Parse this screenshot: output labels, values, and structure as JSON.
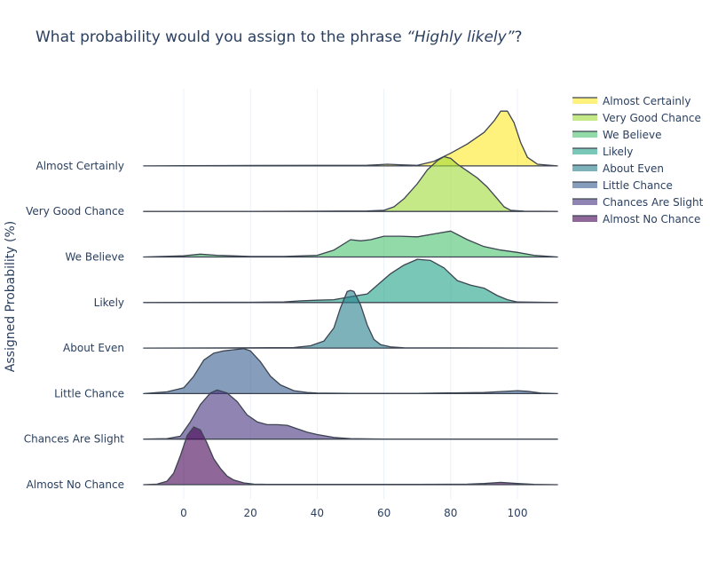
{
  "chart_data": {
    "type": "ridgeline",
    "title_prefix": "What probability would you assign to the phrase ",
    "title_phrase": "“Highly likely”",
    "title_suffix": "?",
    "ylabel": "Assigned Probability (%)",
    "xlabel": "",
    "xlim": [
      -12.5,
      112.5
    ],
    "xticks": [
      0,
      20,
      40,
      60,
      80,
      100
    ],
    "grid": true,
    "legend_position": "right",
    "line_color": "#3d4451",
    "categories": [
      "Almost No Chance",
      "Chances Are Slight",
      "Little Chance",
      "About Even",
      "Likely",
      "We Believe",
      "Very Good Chance",
      "Almost Certainly"
    ],
    "series": [
      {
        "name": "Almost Certainly",
        "color": "#fde725",
        "x": [
          -12,
          0,
          20,
          40,
          55,
          58,
          61,
          65,
          70,
          75,
          80,
          85,
          90,
          93,
          95,
          97,
          99,
          101,
          103,
          106,
          112
        ],
        "y": [
          0,
          0.005,
          0.008,
          0.01,
          0.012,
          0.02,
          0.03,
          0.02,
          0.01,
          0.08,
          0.22,
          0.38,
          0.58,
          0.78,
          0.95,
          0.95,
          0.75,
          0.4,
          0.15,
          0.03,
          0
        ]
      },
      {
        "name": "Very Good Chance",
        "color": "#a0da39",
        "x": [
          -12,
          20,
          40,
          55,
          60,
          63,
          66,
          70,
          73,
          76,
          78,
          80,
          82,
          85,
          88,
          91,
          94,
          96,
          98,
          102,
          112
        ],
        "y": [
          0,
          0.002,
          0.005,
          0.01,
          0.02,
          0.08,
          0.22,
          0.48,
          0.72,
          0.88,
          0.95,
          0.92,
          0.82,
          0.7,
          0.58,
          0.42,
          0.22,
          0.08,
          0.02,
          0.005,
          0
        ]
      },
      {
        "name": "We Believe",
        "color": "#4ac16d",
        "x": [
          -12,
          0,
          5,
          10,
          20,
          30,
          40,
          45,
          50,
          53,
          56,
          60,
          65,
          70,
          75,
          80,
          85,
          90,
          95,
          100,
          105,
          112
        ],
        "y": [
          0,
          0.02,
          0.05,
          0.03,
          0.01,
          0.01,
          0.03,
          0.12,
          0.3,
          0.28,
          0.3,
          0.36,
          0.36,
          0.35,
          0.4,
          0.45,
          0.3,
          0.18,
          0.12,
          0.08,
          0.03,
          0
        ]
      },
      {
        "name": "Likely",
        "color": "#1fa187",
        "x": [
          -12,
          20,
          30,
          35,
          40,
          45,
          50,
          55,
          58,
          62,
          66,
          70,
          74,
          78,
          82,
          86,
          90,
          94,
          97,
          100,
          112
        ],
        "y": [
          0,
          0.005,
          0.01,
          0.03,
          0.04,
          0.05,
          0.1,
          0.15,
          0.3,
          0.5,
          0.65,
          0.75,
          0.73,
          0.6,
          0.38,
          0.3,
          0.25,
          0.12,
          0.05,
          0.01,
          0
        ]
      },
      {
        "name": "About Even",
        "color": "#277f8e",
        "x": [
          -12,
          20,
          33,
          38,
          42,
          45,
          47,
          49,
          50,
          51,
          53,
          55,
          57,
          59,
          62,
          66,
          112
        ],
        "y": [
          0,
          0.005,
          0.01,
          0.04,
          0.12,
          0.35,
          0.7,
          0.98,
          1.0,
          0.98,
          0.75,
          0.4,
          0.15,
          0.06,
          0.02,
          0.005,
          0
        ]
      },
      {
        "name": "Little Chance",
        "color": "#365c8d",
        "x": [
          -12,
          -5,
          0,
          3,
          6,
          9,
          12,
          15,
          18,
          20,
          23,
          26,
          29,
          33,
          37,
          40,
          50,
          70,
          90,
          100,
          103,
          107,
          112
        ],
        "y": [
          0,
          0.03,
          0.1,
          0.3,
          0.58,
          0.7,
          0.74,
          0.76,
          0.78,
          0.74,
          0.55,
          0.3,
          0.15,
          0.05,
          0.02,
          0.01,
          0.005,
          0.005,
          0.02,
          0.05,
          0.04,
          0.01,
          0
        ]
      },
      {
        "name": "Chances Are Slight",
        "color": "#46337e",
        "x": [
          -12,
          -5,
          -1,
          2,
          5,
          8,
          10,
          13,
          16,
          19,
          22,
          25,
          28,
          31,
          34,
          37,
          40,
          45,
          50,
          60,
          112
        ],
        "y": [
          0,
          0.01,
          0.05,
          0.3,
          0.6,
          0.8,
          0.85,
          0.8,
          0.65,
          0.42,
          0.3,
          0.25,
          0.25,
          0.24,
          0.18,
          0.12,
          0.08,
          0.03,
          0.01,
          0.002,
          0
        ]
      },
      {
        "name": "Almost No Chance",
        "color": "#440154",
        "x": [
          -12,
          -8,
          -5,
          -3,
          -1,
          1,
          3,
          5,
          7,
          9,
          11,
          13,
          15,
          18,
          21,
          25,
          40,
          70,
          85,
          90,
          95,
          100,
          105,
          112
        ],
        "y": [
          0,
          0.01,
          0.06,
          0.2,
          0.5,
          0.85,
          1.0,
          0.95,
          0.72,
          0.45,
          0.28,
          0.15,
          0.08,
          0.03,
          0.01,
          0.005,
          0.005,
          0.005,
          0.01,
          0.02,
          0.04,
          0.02,
          0.005,
          0
        ]
      }
    ]
  }
}
